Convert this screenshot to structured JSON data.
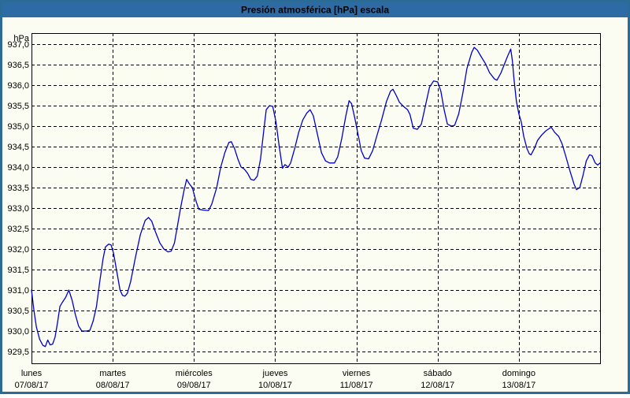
{
  "header": {
    "title": "Presión atmosférica [hPa] escala"
  },
  "colors": {
    "frame_border": "#2a6c96",
    "header_bg": "#2e6aa3",
    "header_text": "#ffffff",
    "page_bg": "#fcfdf2",
    "grid_line": "#000000",
    "series_line": "#0000c8",
    "label_text": "#000000"
  },
  "chart_data": {
    "type": "line",
    "title": "Presión atmosférica [hPa] escala",
    "y_unit": "hPa",
    "ylim": [
      929.5,
      937.0
    ],
    "ytick_step": 0.5,
    "ytick_values": [
      937.0,
      936.5,
      936.0,
      935.5,
      935.0,
      934.5,
      934.0,
      933.5,
      933.0,
      932.5,
      932.0,
      931.5,
      931.0,
      930.5,
      930.0,
      929.5
    ],
    "ytick_labels": [
      "937,0",
      "936,5",
      "936,0",
      "935,5",
      "935,0",
      "934,5",
      "934,0",
      "933,5",
      "933,0",
      "932,5",
      "932,0",
      "931,5",
      "931,0",
      "930,5",
      "930,0",
      "929,5"
    ],
    "xlim_days": [
      0,
      7
    ],
    "grid": "dashed",
    "legend": "none",
    "x_days": [
      {
        "label": "lunes",
        "date": "07/08/17"
      },
      {
        "label": "martes",
        "date": "08/08/17"
      },
      {
        "label": "miércoles",
        "date": "09/08/17"
      },
      {
        "label": "jueves",
        "date": "10/08/17"
      },
      {
        "label": "viernes",
        "date": "11/08/17"
      },
      {
        "label": "sábado",
        "date": "12/08/17"
      },
      {
        "label": "domingo",
        "date": "13/08/17"
      }
    ],
    "series": [
      {
        "name": "Presión atmosférica",
        "color": "#0000c8",
        "points": [
          [
            0.0,
            931.0
          ],
          [
            0.03,
            930.5
          ],
          [
            0.06,
            930.1
          ],
          [
            0.1,
            929.8
          ],
          [
            0.14,
            929.65
          ],
          [
            0.17,
            929.62
          ],
          [
            0.2,
            929.78
          ],
          [
            0.23,
            929.66
          ],
          [
            0.26,
            929.68
          ],
          [
            0.29,
            929.85
          ],
          [
            0.32,
            930.2
          ],
          [
            0.35,
            930.6
          ],
          [
            0.38,
            930.7
          ],
          [
            0.42,
            930.82
          ],
          [
            0.46,
            931.0
          ],
          [
            0.5,
            930.75
          ],
          [
            0.54,
            930.4
          ],
          [
            0.58,
            930.12
          ],
          [
            0.62,
            930.0
          ],
          [
            0.68,
            930.0
          ],
          [
            0.72,
            930.02
          ],
          [
            0.76,
            930.25
          ],
          [
            0.8,
            930.6
          ],
          [
            0.84,
            931.2
          ],
          [
            0.88,
            931.75
          ],
          [
            0.91,
            932.05
          ],
          [
            0.95,
            932.12
          ],
          [
            0.98,
            932.1
          ],
          [
            1.01,
            931.9
          ],
          [
            1.05,
            931.45
          ],
          [
            1.09,
            931.0
          ],
          [
            1.12,
            930.87
          ],
          [
            1.15,
            930.85
          ],
          [
            1.18,
            930.92
          ],
          [
            1.22,
            931.2
          ],
          [
            1.28,
            931.8
          ],
          [
            1.34,
            932.35
          ],
          [
            1.4,
            932.7
          ],
          [
            1.44,
            932.77
          ],
          [
            1.48,
            932.68
          ],
          [
            1.52,
            932.45
          ],
          [
            1.58,
            932.15
          ],
          [
            1.63,
            932.0
          ],
          [
            1.68,
            931.93
          ],
          [
            1.72,
            931.95
          ],
          [
            1.76,
            932.15
          ],
          [
            1.8,
            932.6
          ],
          [
            1.84,
            933.05
          ],
          [
            1.88,
            933.45
          ],
          [
            1.91,
            933.7
          ],
          [
            1.94,
            933.6
          ],
          [
            1.98,
            933.5
          ],
          [
            2.02,
            933.2
          ],
          [
            2.06,
            932.97
          ],
          [
            2.12,
            932.95
          ],
          [
            2.18,
            932.94
          ],
          [
            2.22,
            933.1
          ],
          [
            2.28,
            933.5
          ],
          [
            2.33,
            934.0
          ],
          [
            2.38,
            934.35
          ],
          [
            2.43,
            934.6
          ],
          [
            2.46,
            934.62
          ],
          [
            2.5,
            934.45
          ],
          [
            2.54,
            934.2
          ],
          [
            2.58,
            934.0
          ],
          [
            2.62,
            933.95
          ],
          [
            2.66,
            933.85
          ],
          [
            2.7,
            933.7
          ],
          [
            2.74,
            933.68
          ],
          [
            2.78,
            933.78
          ],
          [
            2.82,
            934.2
          ],
          [
            2.86,
            934.9
          ],
          [
            2.89,
            935.4
          ],
          [
            2.93,
            935.5
          ],
          [
            2.97,
            935.48
          ],
          [
            3.01,
            935.1
          ],
          [
            3.05,
            934.5
          ],
          [
            3.09,
            933.97
          ],
          [
            3.12,
            934.06
          ],
          [
            3.16,
            934.0
          ],
          [
            3.19,
            934.1
          ],
          [
            3.24,
            934.45
          ],
          [
            3.29,
            934.85
          ],
          [
            3.34,
            935.15
          ],
          [
            3.39,
            935.32
          ],
          [
            3.43,
            935.4
          ],
          [
            3.47,
            935.25
          ],
          [
            3.52,
            934.8
          ],
          [
            3.57,
            934.35
          ],
          [
            3.62,
            934.15
          ],
          [
            3.67,
            934.1
          ],
          [
            3.73,
            934.1
          ],
          [
            3.77,
            934.25
          ],
          [
            3.82,
            934.7
          ],
          [
            3.87,
            935.25
          ],
          [
            3.91,
            935.62
          ],
          [
            3.94,
            935.55
          ],
          [
            3.98,
            935.2
          ],
          [
            4.02,
            934.8
          ],
          [
            4.06,
            934.4
          ],
          [
            4.1,
            934.22
          ],
          [
            4.15,
            934.2
          ],
          [
            4.2,
            934.4
          ],
          [
            4.25,
            934.75
          ],
          [
            4.31,
            935.15
          ],
          [
            4.37,
            935.6
          ],
          [
            4.42,
            935.85
          ],
          [
            4.45,
            935.9
          ],
          [
            4.49,
            935.75
          ],
          [
            4.53,
            935.58
          ],
          [
            4.58,
            935.48
          ],
          [
            4.63,
            935.4
          ],
          [
            4.66,
            935.28
          ],
          [
            4.7,
            934.95
          ],
          [
            4.75,
            934.92
          ],
          [
            4.8,
            935.05
          ],
          [
            4.85,
            935.5
          ],
          [
            4.9,
            935.95
          ],
          [
            4.95,
            936.1
          ],
          [
            5.0,
            936.08
          ],
          [
            5.04,
            935.85
          ],
          [
            5.08,
            935.4
          ],
          [
            5.12,
            935.05
          ],
          [
            5.17,
            935.0
          ],
          [
            5.21,
            935.02
          ],
          [
            5.26,
            935.3
          ],
          [
            5.31,
            935.8
          ],
          [
            5.36,
            936.4
          ],
          [
            5.42,
            936.8
          ],
          [
            5.45,
            936.92
          ],
          [
            5.49,
            936.85
          ],
          [
            5.54,
            936.68
          ],
          [
            5.59,
            936.52
          ],
          [
            5.64,
            936.3
          ],
          [
            5.7,
            936.15
          ],
          [
            5.73,
            936.12
          ],
          [
            5.78,
            936.3
          ],
          [
            5.82,
            936.5
          ],
          [
            5.86,
            936.7
          ],
          [
            5.9,
            936.88
          ],
          [
            5.92,
            936.6
          ],
          [
            5.94,
            936.15
          ],
          [
            5.97,
            935.6
          ],
          [
            6.0,
            935.3
          ],
          [
            6.03,
            935.1
          ],
          [
            6.06,
            934.75
          ],
          [
            6.1,
            934.45
          ],
          [
            6.13,
            934.32
          ],
          [
            6.15,
            934.3
          ],
          [
            6.19,
            934.45
          ],
          [
            6.23,
            934.65
          ],
          [
            6.28,
            934.78
          ],
          [
            6.33,
            934.88
          ],
          [
            6.38,
            934.95
          ],
          [
            6.4,
            934.97
          ],
          [
            6.44,
            934.85
          ],
          [
            6.49,
            934.75
          ],
          [
            6.53,
            934.58
          ],
          [
            6.58,
            934.25
          ],
          [
            6.63,
            933.9
          ],
          [
            6.68,
            933.58
          ],
          [
            6.71,
            933.45
          ],
          [
            6.75,
            933.5
          ],
          [
            6.79,
            933.8
          ],
          [
            6.83,
            934.15
          ],
          [
            6.87,
            934.3
          ],
          [
            6.9,
            934.28
          ],
          [
            6.94,
            934.1
          ],
          [
            6.97,
            934.05
          ],
          [
            7.0,
            934.1
          ]
        ]
      }
    ]
  }
}
